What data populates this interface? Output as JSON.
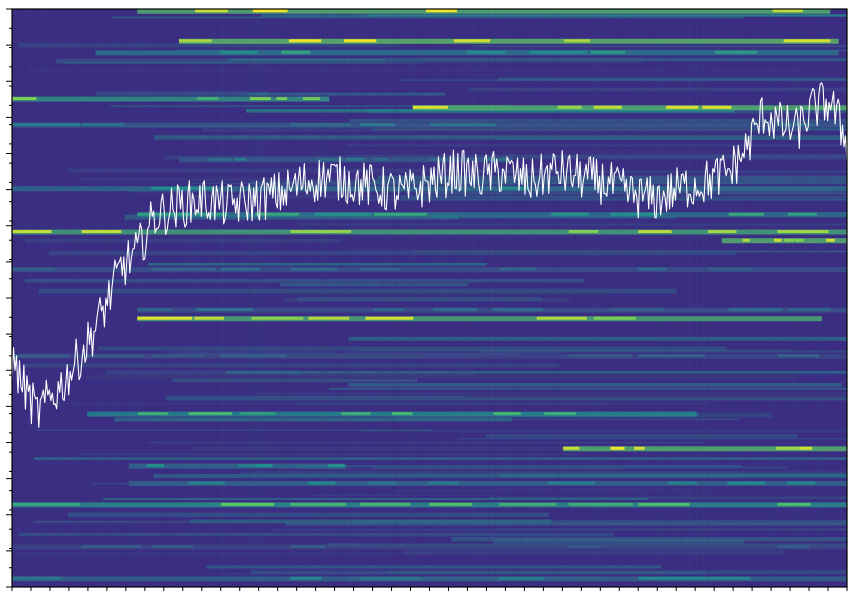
{
  "chart_data": {
    "type": "heatmap",
    "title": "",
    "xlabel": "",
    "ylabel": "",
    "colormap": "viridis",
    "background_color": "#3b2e82",
    "grid": false,
    "legend": "none",
    "x_tick_labels": [],
    "y_tick_labels": [],
    "x_tick_count": 44,
    "y_minor_tick_count": 30,
    "y_major_tick_count": 16,
    "bands": [
      {
        "row": 0.003,
        "x_start": 0.15,
        "x_end": 0.98,
        "intensity": 0.95
      },
      {
        "row": 0.055,
        "x_start": 0.2,
        "x_end": 0.99,
        "intensity": 1.0
      },
      {
        "row": 0.075,
        "x_start": 0.1,
        "x_end": 0.99,
        "intensity": 0.55
      },
      {
        "row": 0.155,
        "x_start": 0.0,
        "x_end": 0.38,
        "intensity": 0.75
      },
      {
        "row": 0.17,
        "x_start": 0.48,
        "x_end": 1.0,
        "intensity": 0.95
      },
      {
        "row": 0.2,
        "x_start": 0.0,
        "x_end": 1.0,
        "intensity": 0.4
      },
      {
        "row": 0.26,
        "x_start": 0.2,
        "x_end": 0.6,
        "intensity": 0.4
      },
      {
        "row": 0.31,
        "x_start": 0.0,
        "x_end": 1.0,
        "intensity": 0.5
      },
      {
        "row": 0.355,
        "x_start": 0.15,
        "x_end": 1.0,
        "intensity": 0.55
      },
      {
        "row": 0.385,
        "x_start": 0.0,
        "x_end": 1.0,
        "intensity": 0.85
      },
      {
        "row": 0.4,
        "x_start": 0.85,
        "x_end": 1.0,
        "intensity": 0.95
      },
      {
        "row": 0.45,
        "x_start": 0.0,
        "x_end": 1.0,
        "intensity": 0.35
      },
      {
        "row": 0.52,
        "x_start": 0.15,
        "x_end": 1.0,
        "intensity": 0.35
      },
      {
        "row": 0.535,
        "x_start": 0.15,
        "x_end": 0.97,
        "intensity": 0.9
      },
      {
        "row": 0.6,
        "x_start": 0.0,
        "x_end": 1.0,
        "intensity": 0.3
      },
      {
        "row": 0.7,
        "x_start": 0.09,
        "x_end": 0.82,
        "intensity": 0.65
      },
      {
        "row": 0.76,
        "x_start": 0.66,
        "x_end": 1.0,
        "intensity": 0.95
      },
      {
        "row": 0.79,
        "x_start": 0.14,
        "x_end": 0.4,
        "intensity": 0.5
      },
      {
        "row": 0.82,
        "x_start": 0.14,
        "x_end": 1.0,
        "intensity": 0.45
      },
      {
        "row": 0.857,
        "x_start": 0.0,
        "x_end": 1.0,
        "intensity": 0.7
      },
      {
        "row": 0.93,
        "x_start": 0.0,
        "x_end": 1.0,
        "intensity": 0.3
      },
      {
        "row": 0.985,
        "x_start": 0.0,
        "x_end": 1.0,
        "intensity": 0.45
      }
    ],
    "overlay_line": {
      "color": "#ffffff",
      "x": [
        0.0,
        0.03,
        0.06,
        0.09,
        0.11,
        0.13,
        0.15,
        0.17,
        0.2,
        0.23,
        0.26,
        0.29,
        0.32,
        0.35,
        0.38,
        0.41,
        0.44,
        0.47,
        0.5,
        0.53,
        0.56,
        0.59,
        0.62,
        0.65,
        0.68,
        0.71,
        0.74,
        0.77,
        0.8,
        0.83,
        0.86,
        0.88,
        0.9,
        0.92,
        0.94,
        0.96,
        0.98,
        1.0
      ],
      "y": [
        0.39,
        0.3,
        0.35,
        0.42,
        0.48,
        0.55,
        0.58,
        0.64,
        0.66,
        0.67,
        0.66,
        0.67,
        0.68,
        0.7,
        0.71,
        0.7,
        0.69,
        0.68,
        0.7,
        0.72,
        0.71,
        0.72,
        0.7,
        0.72,
        0.71,
        0.7,
        0.68,
        0.67,
        0.69,
        0.7,
        0.72,
        0.76,
        0.82,
        0.8,
        0.79,
        0.83,
        0.84,
        0.77
      ]
    }
  }
}
